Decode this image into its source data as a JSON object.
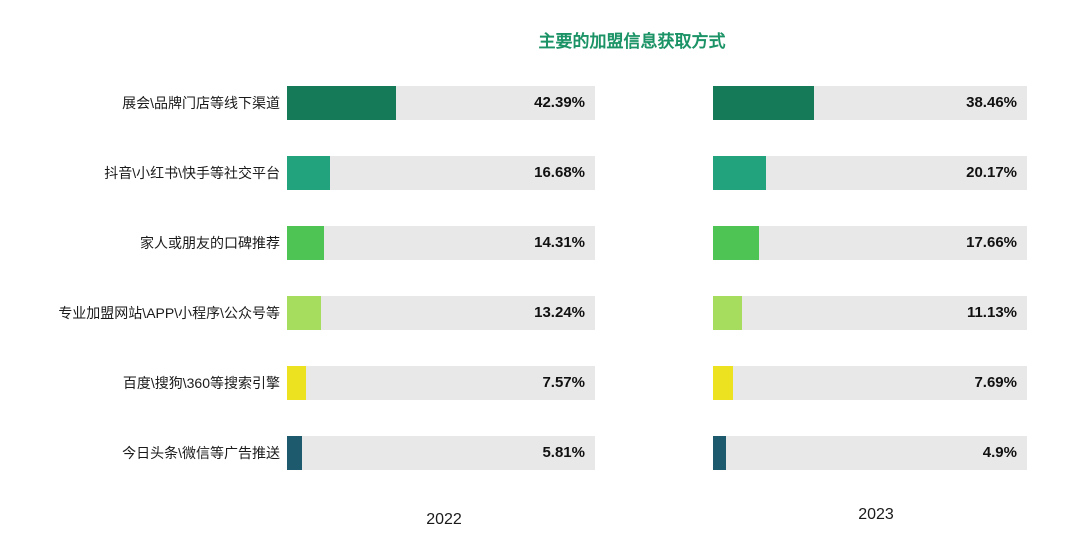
{
  "title": "主要的加盟信息获取方式",
  "colors": {
    "title": "#1b9366",
    "track": "#e8e8e8",
    "value_text": "#111111",
    "category_text": "#1a1a1a",
    "bars": [
      "#147a58",
      "#22a37e",
      "#4ec455",
      "#a7dd5f",
      "#ece21f",
      "#1e5a6e"
    ]
  },
  "chart_data": {
    "type": "bar",
    "orientation": "horizontal",
    "title": "主要的加盟信息获取方式",
    "categories": [
      "展会\\品牌门店等线下渠道",
      "抖音\\小红书\\快手等社交平台",
      "家人或朋友的口碑推荐",
      "专业加盟网站\\APP\\小程序\\公众号等",
      "百度\\搜狗\\360等搜索引擎",
      "今日头条\\微信等广告推送"
    ],
    "series": [
      {
        "name": "2022",
        "values": [
          42.39,
          16.68,
          14.31,
          13.24,
          7.57,
          5.81
        ],
        "labels": [
          "42.39%",
          "16.68%",
          "14.31%",
          "13.24%",
          "7.57%",
          "5.81%"
        ]
      },
      {
        "name": "2023",
        "values": [
          38.46,
          20.17,
          17.66,
          11.13,
          7.69,
          4.9
        ],
        "labels": [
          "38.46%",
          "20.17%",
          "17.66%",
          "11.13%",
          "7.69%",
          "4.9%"
        ]
      }
    ],
    "value_suffix": "%",
    "axis_implied_max": 120,
    "legend_position": "none",
    "grid": false
  }
}
